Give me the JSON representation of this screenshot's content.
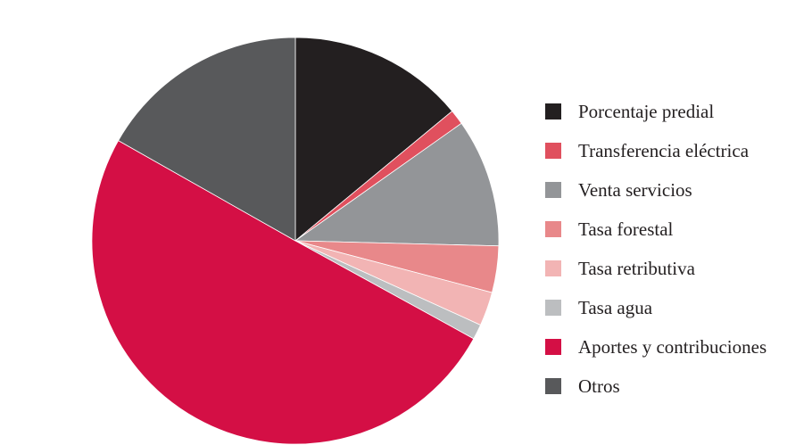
{
  "chart_data": {
    "type": "pie",
    "legend_position": "right",
    "slices": [
      {
        "label": "Porcentaje predial",
        "value": 14,
        "color": "#231f20"
      },
      {
        "label": "Transferencia eléctrica",
        "value": 1.2,
        "color": "#e0505e"
      },
      {
        "label": "Venta servicios",
        "value": 10.2,
        "color": "#939598"
      },
      {
        "label": "Tasa forestal",
        "value": 3.7,
        "color": "#e8888a"
      },
      {
        "label": "Tasa retributiva",
        "value": 2.7,
        "color": "#f2b4b4"
      },
      {
        "label": "Tasa agua",
        "value": 1.2,
        "color": "#bcbec0"
      },
      {
        "label": "Aportes y contribuciones",
        "value": 50.2,
        "color": "#d40f45"
      },
      {
        "label": "Otros",
        "value": 16.8,
        "color": "#58595b"
      }
    ]
  }
}
